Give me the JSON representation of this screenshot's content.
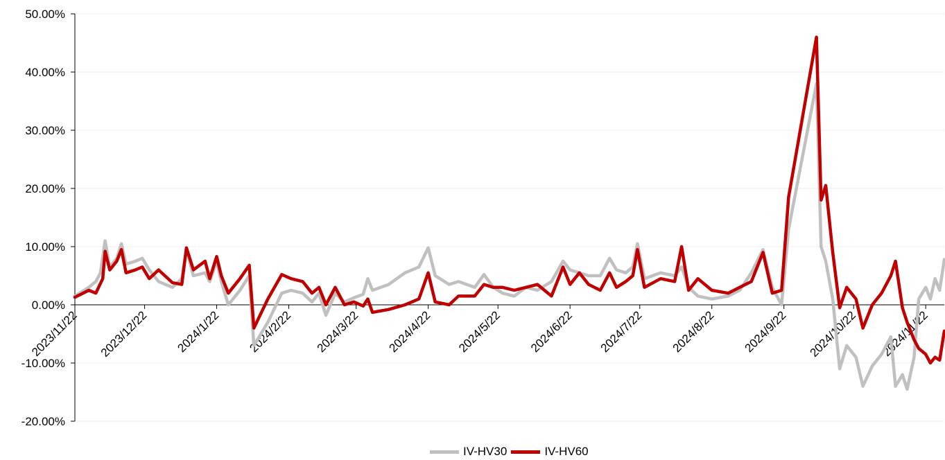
{
  "chart_data": {
    "type": "line",
    "title": "",
    "xlabel": "",
    "ylabel": "",
    "ylim": [
      -0.2,
      0.5
    ],
    "yticks": [
      0.5,
      0.4,
      0.3,
      0.2,
      0.1,
      0.0,
      -0.1,
      -0.2
    ],
    "ytick_labels": [
      "50.00%",
      "40.00%",
      "30.00%",
      "20.00%",
      "10.00%",
      "0.00%",
      "-10.00%",
      "-20.00%"
    ],
    "x_range": [
      "2023-11-22",
      "2024-11-30"
    ],
    "xticks": [
      "2023-11-22",
      "2023-12-22",
      "2024-01-22",
      "2024-02-22",
      "2024-03-22",
      "2024-04-22",
      "2024-05-22",
      "2024-06-22",
      "2024-07-22",
      "2024-08-22",
      "2024-09-22",
      "2024-10-22",
      "2024-11-22"
    ],
    "xtick_labels": [
      "2023/11/22",
      "2023/12/22",
      "2024/1/22",
      "2024/2/22",
      "2024/3/22",
      "2024/4/22",
      "2024/5/22",
      "2024/6/22",
      "2024/7/22",
      "2024/8/22",
      "2024/9/22",
      "2024/10/22",
      "2024/11/22"
    ],
    "grid": true,
    "legend_position": "bottom",
    "series": [
      {
        "name": "IV-HV30",
        "color": "#C0C0C0",
        "points": [
          [
            "2023-11-22",
            0.015
          ],
          [
            "2023-11-28",
            0.03
          ],
          [
            "2023-12-01",
            0.04
          ],
          [
            "2023-12-03",
            0.055
          ],
          [
            "2023-12-05",
            0.11
          ],
          [
            "2023-12-07",
            0.065
          ],
          [
            "2023-12-10",
            0.08
          ],
          [
            "2023-12-12",
            0.105
          ],
          [
            "2023-12-14",
            0.07
          ],
          [
            "2023-12-18",
            0.075
          ],
          [
            "2023-12-21",
            0.08
          ],
          [
            "2023-12-24",
            0.06
          ],
          [
            "2023-12-28",
            0.04
          ],
          [
            "2024-01-03",
            0.03
          ],
          [
            "2024-01-07",
            0.045
          ],
          [
            "2024-01-09",
            0.095
          ],
          [
            "2024-01-12",
            0.05
          ],
          [
            "2024-01-17",
            0.055
          ],
          [
            "2024-01-19",
            0.04
          ],
          [
            "2024-01-22",
            0.075
          ],
          [
            "2024-01-24",
            0.04
          ],
          [
            "2024-01-27",
            0.0
          ],
          [
            "2024-02-01",
            0.025
          ],
          [
            "2024-02-05",
            0.05
          ],
          [
            "2024-02-07",
            -0.07
          ],
          [
            "2024-02-13",
            -0.03
          ],
          [
            "2024-02-19",
            0.02
          ],
          [
            "2024-02-23",
            0.025
          ],
          [
            "2024-02-28",
            0.02
          ],
          [
            "2024-03-03",
            0.005
          ],
          [
            "2024-03-06",
            0.02
          ],
          [
            "2024-03-09",
            -0.018
          ],
          [
            "2024-03-13",
            0.02
          ],
          [
            "2024-03-17",
            0.005
          ],
          [
            "2024-03-21",
            0.012
          ],
          [
            "2024-03-25",
            0.018
          ],
          [
            "2024-03-27",
            0.045
          ],
          [
            "2024-03-29",
            0.025
          ],
          [
            "2024-04-05",
            0.035
          ],
          [
            "2024-04-12",
            0.055
          ],
          [
            "2024-04-18",
            0.065
          ],
          [
            "2024-04-22",
            0.098
          ],
          [
            "2024-04-25",
            0.05
          ],
          [
            "2024-05-01",
            0.035
          ],
          [
            "2024-05-05",
            0.04
          ],
          [
            "2024-05-12",
            0.03
          ],
          [
            "2024-05-16",
            0.052
          ],
          [
            "2024-05-20",
            0.03
          ],
          [
            "2024-05-24",
            0.02
          ],
          [
            "2024-05-29",
            0.015
          ],
          [
            "2024-06-03",
            0.03
          ],
          [
            "2024-06-08",
            0.025
          ],
          [
            "2024-06-14",
            0.04
          ],
          [
            "2024-06-19",
            0.075
          ],
          [
            "2024-06-22",
            0.06
          ],
          [
            "2024-06-26",
            0.055
          ],
          [
            "2024-06-30",
            0.05
          ],
          [
            "2024-07-05",
            0.05
          ],
          [
            "2024-07-09",
            0.08
          ],
          [
            "2024-07-12",
            0.06
          ],
          [
            "2024-07-16",
            0.055
          ],
          [
            "2024-07-19",
            0.065
          ],
          [
            "2024-07-21",
            0.105
          ],
          [
            "2024-07-24",
            0.045
          ],
          [
            "2024-07-31",
            0.055
          ],
          [
            "2024-08-06",
            0.05
          ],
          [
            "2024-08-09",
            0.065
          ],
          [
            "2024-08-12",
            0.03
          ],
          [
            "2024-08-16",
            0.015
          ],
          [
            "2024-08-22",
            0.01
          ],
          [
            "2024-08-29",
            0.015
          ],
          [
            "2024-09-03",
            0.025
          ],
          [
            "2024-09-08",
            0.055
          ],
          [
            "2024-09-13",
            0.095
          ],
          [
            "2024-09-17",
            0.03
          ],
          [
            "2024-09-21",
            0.0
          ],
          [
            "2024-09-24",
            0.13
          ],
          [
            "2024-10-06",
            0.38
          ],
          [
            "2024-10-08",
            0.1
          ],
          [
            "2024-10-10",
            0.075
          ],
          [
            "2024-10-13",
            0.01
          ],
          [
            "2024-10-16",
            -0.11
          ],
          [
            "2024-10-19",
            -0.07
          ],
          [
            "2024-10-23",
            -0.09
          ],
          [
            "2024-10-26",
            -0.14
          ],
          [
            "2024-10-30",
            -0.105
          ],
          [
            "2024-11-03",
            -0.085
          ],
          [
            "2024-11-07",
            -0.055
          ],
          [
            "2024-11-09",
            -0.14
          ],
          [
            "2024-11-12",
            -0.12
          ],
          [
            "2024-11-14",
            -0.145
          ],
          [
            "2024-11-17",
            -0.09
          ],
          [
            "2024-11-19",
            0.01
          ],
          [
            "2024-11-22",
            0.03
          ],
          [
            "2024-11-24",
            0.01
          ],
          [
            "2024-11-26",
            0.045
          ],
          [
            "2024-11-28",
            0.025
          ],
          [
            "2024-11-30",
            0.078
          ]
        ]
      },
      {
        "name": "IV-HV60",
        "color": "#C00000",
        "points": [
          [
            "2023-11-22",
            0.013
          ],
          [
            "2023-11-28",
            0.025
          ],
          [
            "2023-12-01",
            0.02
          ],
          [
            "2023-12-04",
            0.045
          ],
          [
            "2023-12-05",
            0.092
          ],
          [
            "2023-12-07",
            0.06
          ],
          [
            "2023-12-10",
            0.075
          ],
          [
            "2023-12-12",
            0.095
          ],
          [
            "2023-12-14",
            0.055
          ],
          [
            "2023-12-18",
            0.06
          ],
          [
            "2023-12-21",
            0.065
          ],
          [
            "2023-12-24",
            0.045
          ],
          [
            "2023-12-28",
            0.06
          ],
          [
            "2024-01-03",
            0.038
          ],
          [
            "2024-01-07",
            0.035
          ],
          [
            "2024-01-09",
            0.098
          ],
          [
            "2024-01-12",
            0.06
          ],
          [
            "2024-01-17",
            0.075
          ],
          [
            "2024-01-19",
            0.045
          ],
          [
            "2024-01-22",
            0.083
          ],
          [
            "2024-01-24",
            0.05
          ],
          [
            "2024-01-27",
            0.02
          ],
          [
            "2024-02-01",
            0.045
          ],
          [
            "2024-02-05",
            0.068
          ],
          [
            "2024-02-07",
            -0.04
          ],
          [
            "2024-02-13",
            0.01
          ],
          [
            "2024-02-19",
            0.052
          ],
          [
            "2024-02-23",
            0.045
          ],
          [
            "2024-02-28",
            0.04
          ],
          [
            "2024-03-03",
            0.02
          ],
          [
            "2024-03-06",
            0.03
          ],
          [
            "2024-03-09",
            0.0
          ],
          [
            "2024-03-13",
            0.03
          ],
          [
            "2024-03-17",
            0.0
          ],
          [
            "2024-03-21",
            0.005
          ],
          [
            "2024-03-25",
            -0.002
          ],
          [
            "2024-03-27",
            0.01
          ],
          [
            "2024-03-29",
            -0.013
          ],
          [
            "2024-04-05",
            -0.008
          ],
          [
            "2024-04-12",
            0.0
          ],
          [
            "2024-04-18",
            0.01
          ],
          [
            "2024-04-22",
            0.055
          ],
          [
            "2024-04-25",
            0.005
          ],
          [
            "2024-05-01",
            0.0
          ],
          [
            "2024-05-05",
            0.015
          ],
          [
            "2024-05-12",
            0.015
          ],
          [
            "2024-05-16",
            0.035
          ],
          [
            "2024-05-20",
            0.03
          ],
          [
            "2024-05-24",
            0.03
          ],
          [
            "2024-05-29",
            0.025
          ],
          [
            "2024-06-03",
            0.03
          ],
          [
            "2024-06-08",
            0.035
          ],
          [
            "2024-06-14",
            0.015
          ],
          [
            "2024-06-19",
            0.065
          ],
          [
            "2024-06-22",
            0.035
          ],
          [
            "2024-06-26",
            0.055
          ],
          [
            "2024-06-30",
            0.035
          ],
          [
            "2024-07-05",
            0.025
          ],
          [
            "2024-07-09",
            0.055
          ],
          [
            "2024-07-12",
            0.03
          ],
          [
            "2024-07-16",
            0.04
          ],
          [
            "2024-07-19",
            0.05
          ],
          [
            "2024-07-21",
            0.095
          ],
          [
            "2024-07-24",
            0.03
          ],
          [
            "2024-07-31",
            0.045
          ],
          [
            "2024-08-06",
            0.04
          ],
          [
            "2024-08-09",
            0.1
          ],
          [
            "2024-08-12",
            0.025
          ],
          [
            "2024-08-16",
            0.045
          ],
          [
            "2024-08-22",
            0.025
          ],
          [
            "2024-08-29",
            0.02
          ],
          [
            "2024-09-03",
            0.03
          ],
          [
            "2024-09-08",
            0.04
          ],
          [
            "2024-09-13",
            0.09
          ],
          [
            "2024-09-17",
            0.02
          ],
          [
            "2024-09-21",
            0.025
          ],
          [
            "2024-09-24",
            0.185
          ],
          [
            "2024-10-06",
            0.46
          ],
          [
            "2024-10-08",
            0.18
          ],
          [
            "2024-10-10",
            0.205
          ],
          [
            "2024-10-13",
            0.09
          ],
          [
            "2024-10-16",
            -0.005
          ],
          [
            "2024-10-19",
            0.03
          ],
          [
            "2024-10-23",
            0.01
          ],
          [
            "2024-10-26",
            -0.04
          ],
          [
            "2024-10-30",
            0.0
          ],
          [
            "2024-11-03",
            0.02
          ],
          [
            "2024-11-07",
            0.05
          ],
          [
            "2024-11-09",
            0.075
          ],
          [
            "2024-11-12",
            -0.005
          ],
          [
            "2024-11-14",
            -0.03
          ],
          [
            "2024-11-17",
            -0.06
          ],
          [
            "2024-11-19",
            -0.075
          ],
          [
            "2024-11-22",
            -0.085
          ],
          [
            "2024-11-24",
            -0.1
          ],
          [
            "2024-11-26",
            -0.09
          ],
          [
            "2024-11-28",
            -0.095
          ],
          [
            "2024-11-30",
            -0.045
          ]
        ]
      }
    ]
  }
}
